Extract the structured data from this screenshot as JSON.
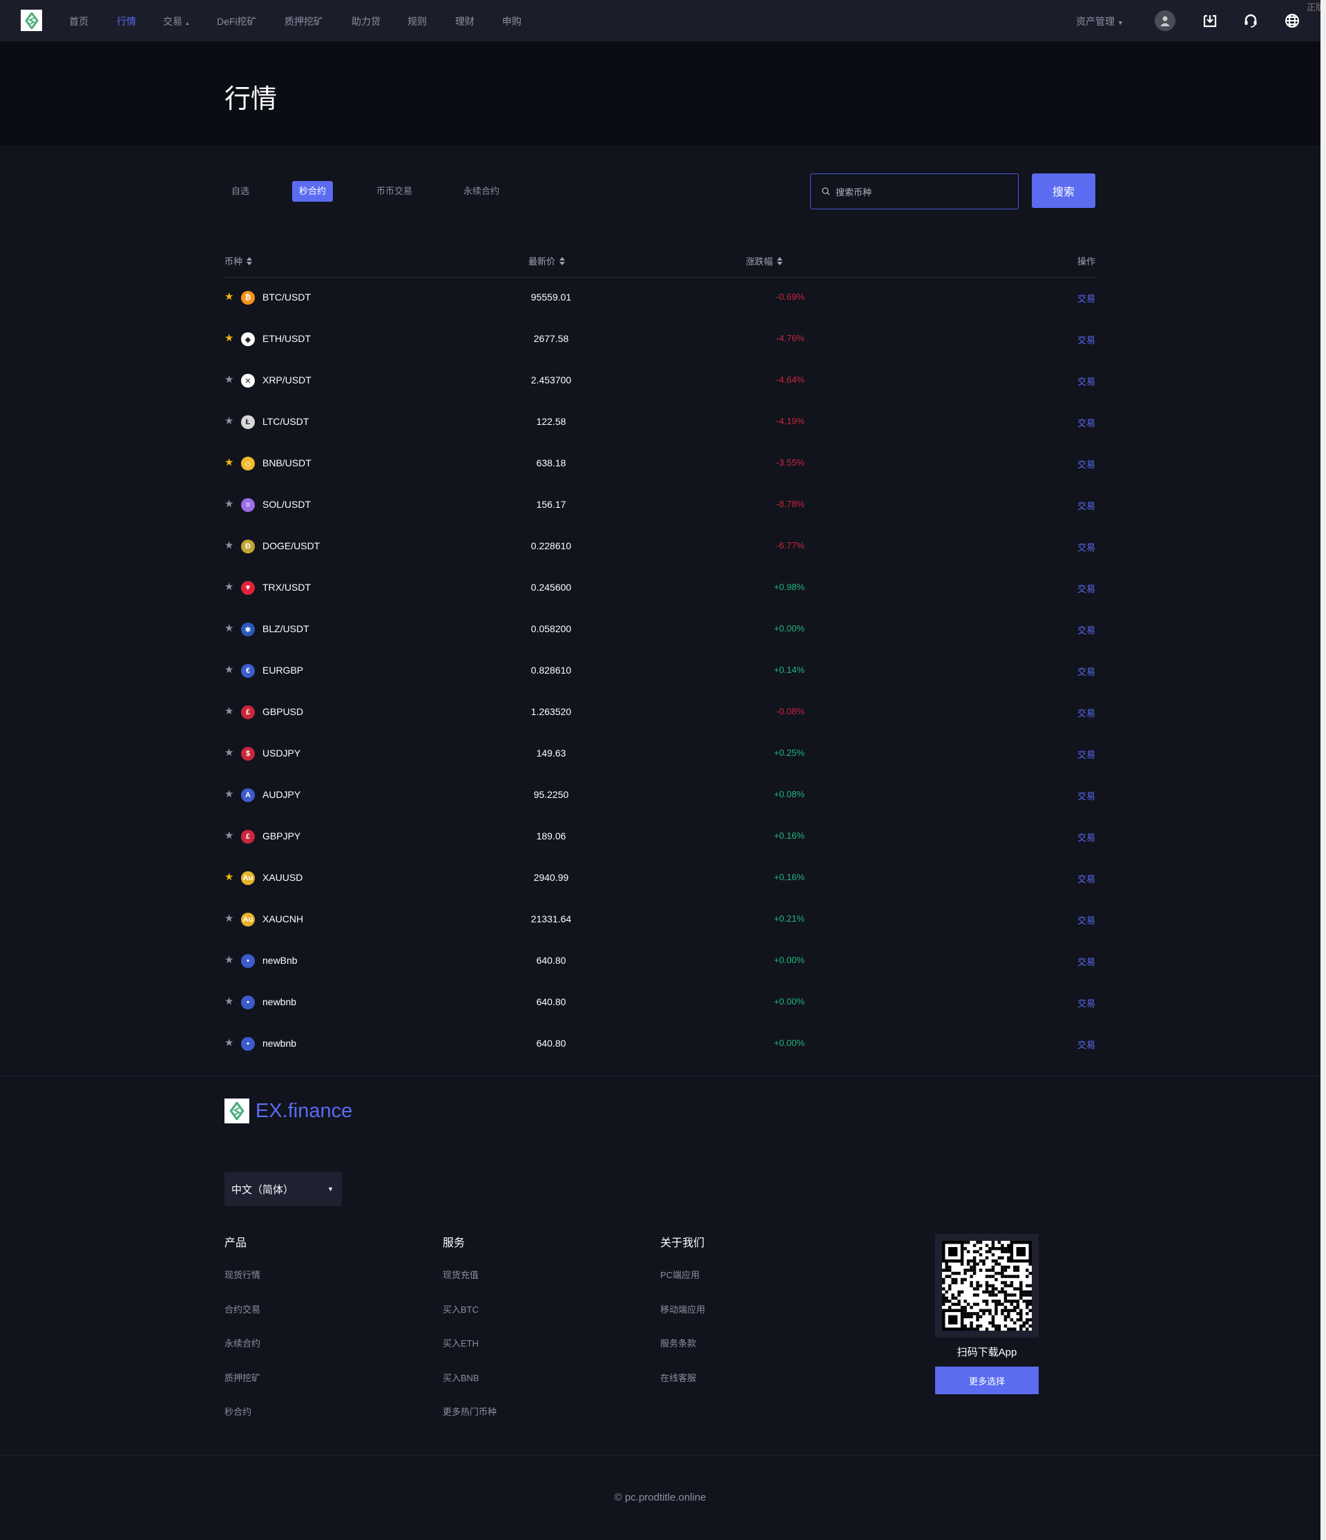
{
  "nav": {
    "items": [
      "首页",
      "行情",
      "交易",
      "DeFi挖矿",
      "质押挖矿",
      "助力贷",
      "规则",
      "理财",
      "申购"
    ],
    "active": 1,
    "asset_mgmt": "资产管理",
    "edge_text": "正版"
  },
  "hero": {
    "title": "行情"
  },
  "tabs": {
    "items": [
      "自选",
      "秒合约",
      "币币交易",
      "永续合约"
    ],
    "active": 1
  },
  "search": {
    "placeholder": "搜索币种",
    "button": "搜索"
  },
  "table": {
    "headers": [
      "币种",
      "最新价",
      "涨跌幅",
      "操作"
    ],
    "rows": [
      {
        "symbol": "BTC/USDT",
        "price": "95559.01",
        "change": "-0.69%",
        "fav": true,
        "icon_color": "#f7931a",
        "icon": "₿"
      },
      {
        "symbol": "ETH/USDT",
        "price": "2677.58",
        "change": "-4.76%",
        "fav": true,
        "icon_color": "#ffffff",
        "icon": "◆"
      },
      {
        "symbol": "XRP/USDT",
        "price": "2.453700",
        "change": "-4.64%",
        "fav": false,
        "icon_color": "#ffffff",
        "icon": "✕"
      },
      {
        "symbol": "LTC/USDT",
        "price": "122.58",
        "change": "-4.19%",
        "fav": false,
        "icon_color": "#d8d8d8",
        "icon": "Ł"
      },
      {
        "symbol": "BNB/USDT",
        "price": "638.18",
        "change": "-3.55%",
        "fav": true,
        "icon_color": "#f3ba2f",
        "icon": "◇"
      },
      {
        "symbol": "SOL/USDT",
        "price": "156.17",
        "change": "-8.78%",
        "fav": false,
        "icon_color": "#9c6ee8",
        "icon": "≡"
      },
      {
        "symbol": "DOGE/USDT",
        "price": "0.228610",
        "change": "-6.77%",
        "fav": false,
        "icon_color": "#c2a633",
        "icon": "Ð"
      },
      {
        "symbol": "TRX/USDT",
        "price": "0.245600",
        "change": "+0.98%",
        "fav": false,
        "icon_color": "#e0233a",
        "icon": "▼"
      },
      {
        "symbol": "BLZ/USDT",
        "price": "0.058200",
        "change": "+0.00%",
        "fav": false,
        "icon_color": "#2a5ab8",
        "icon": "✱"
      },
      {
        "symbol": "EURGBP",
        "price": "0.828610",
        "change": "+0.14%",
        "fav": false,
        "icon_color": "#3d5ccc",
        "icon": "€"
      },
      {
        "symbol": "GBPUSD",
        "price": "1.263520",
        "change": "-0.08%",
        "fav": false,
        "icon_color": "#c8283c",
        "icon": "£"
      },
      {
        "symbol": "USDJPY",
        "price": "149.63",
        "change": "+0.25%",
        "fav": false,
        "icon_color": "#c8283c",
        "icon": "$"
      },
      {
        "symbol": "AUDJPY",
        "price": "95.2250",
        "change": "+0.08%",
        "fav": false,
        "icon_color": "#3d5ccc",
        "icon": "A"
      },
      {
        "symbol": "GBPJPY",
        "price": "189.06",
        "change": "+0.16%",
        "fav": false,
        "icon_color": "#c8283c",
        "icon": "£"
      },
      {
        "symbol": "XAUUSD",
        "price": "2940.99",
        "change": "+0.16%",
        "fav": true,
        "icon_color": "#e5b32a",
        "icon": "Au"
      },
      {
        "symbol": "XAUCNH",
        "price": "21331.64",
        "change": "+0.21%",
        "fav": false,
        "icon_color": "#e5b32a",
        "icon": "Au"
      },
      {
        "symbol": "newBnb",
        "price": "640.80",
        "change": "+0.00%",
        "fav": false,
        "icon_color": "#3d5ccc",
        "icon": "•"
      },
      {
        "symbol": "newbnb",
        "price": "640.80",
        "change": "+0.00%",
        "fav": false,
        "icon_color": "#3d5ccc",
        "icon": "•"
      },
      {
        "symbol": "newbnb",
        "price": "640.80",
        "change": "+0.00%",
        "fav": false,
        "icon_color": "#3d5ccc",
        "icon": "•"
      }
    ],
    "action_label": "交易"
  },
  "colors": {
    "accent": "#5b6cf0",
    "down": "#c8283c",
    "up": "#1fb87a",
    "fav": "#f0b90b",
    "unfav": "#8d90a0",
    "brand_green": "#4caf7d"
  },
  "footer": {
    "brand": "EX.finance",
    "language": "中文（简体）",
    "columns": [
      {
        "title": "产品",
        "items": [
          "现货行情",
          "合约交易",
          "永续合约",
          "质押挖矿",
          "秒合约"
        ]
      },
      {
        "title": "服务",
        "items": [
          "现货充值",
          "买入BTC",
          "买入ETH",
          "买入BNB",
          "更多热门币种"
        ]
      },
      {
        "title": "关于我们",
        "items": [
          "PC端应用",
          "移动端应用",
          "服务条款",
          "在线客服"
        ]
      }
    ],
    "qr_caption": "扫码下载App",
    "more_button": "更多选择",
    "copyright": "© pc.prodtitle.online"
  }
}
